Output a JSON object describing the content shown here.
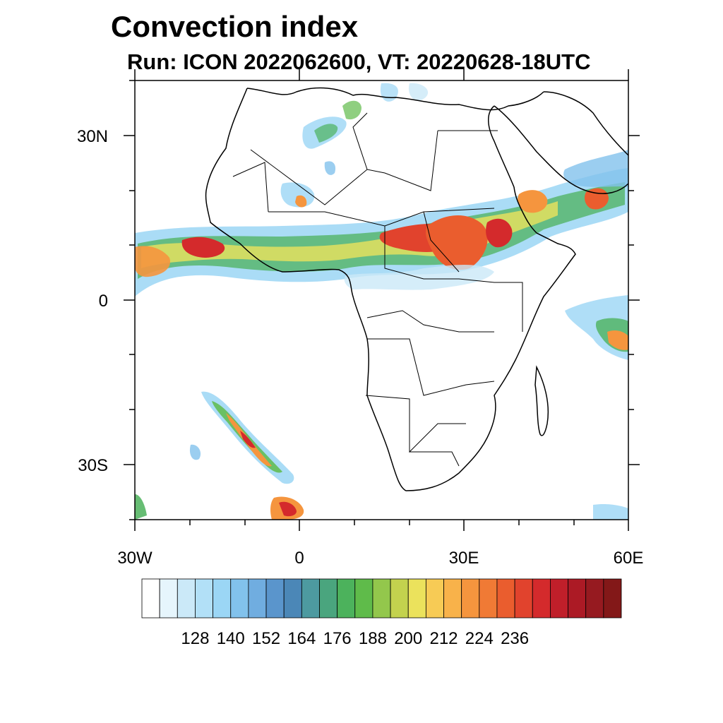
{
  "header": {
    "title": "Convection index",
    "subtitle": "Run: ICON 2022062600,  VT: 20220628-18UTC"
  },
  "axes": {
    "lat_labels": [
      "30N",
      "0",
      "30S"
    ],
    "lon_labels": [
      "30W",
      "0",
      "30E",
      "60E"
    ]
  },
  "colorbar": {
    "colors": [
      "#ffffff",
      "#e6f5fc",
      "#cbe9f8",
      "#b2e0f7",
      "#9bd6f5",
      "#82c2ec",
      "#70ade0",
      "#5a95cc",
      "#4b87b7",
      "#4d9aa0",
      "#4aa57e",
      "#4cb25c",
      "#5fbb4a",
      "#93c74c",
      "#c3d24e",
      "#ebe25c",
      "#f7cb55",
      "#f8b24a",
      "#f5953e",
      "#f07a35",
      "#ea5d2e",
      "#e1432d",
      "#d42a2c",
      "#c01f2a",
      "#ac1a25",
      "#961a20",
      "#831818"
    ],
    "labels": [
      "128",
      "140",
      "152",
      "164",
      "176",
      "188",
      "200",
      "212",
      "224",
      "236"
    ]
  }
}
